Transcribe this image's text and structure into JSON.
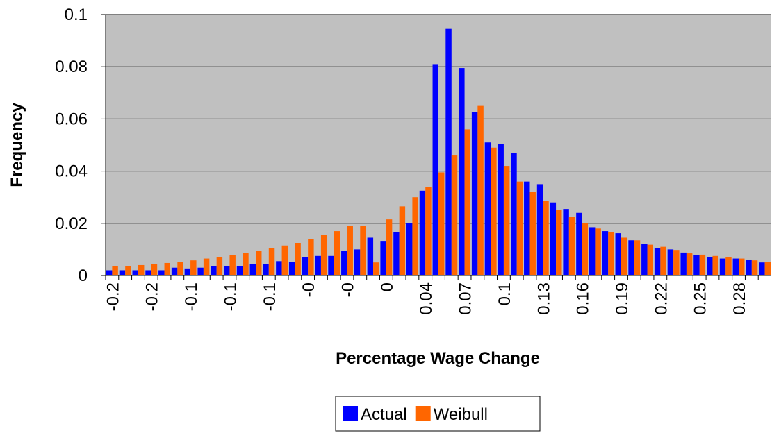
{
  "chart_data": {
    "type": "bar",
    "x_label": "Percentage Wage Change",
    "y_label": "Frequency",
    "categories": [
      "-0.2",
      null,
      null,
      "-0.2",
      null,
      null,
      "-0.1",
      null,
      null,
      "-0.1",
      null,
      null,
      "-0.1",
      null,
      null,
      "-0",
      null,
      null,
      "-0",
      null,
      null,
      "0",
      null,
      null,
      "0.04",
      null,
      null,
      "0.07",
      null,
      null,
      "0.1",
      null,
      null,
      "0.13",
      null,
      null,
      "0.16",
      null,
      null,
      "0.19",
      null,
      null,
      "0.22",
      null,
      null,
      "0.25",
      null,
      null,
      "0.28",
      null,
      null
    ],
    "series": [
      {
        "name": "Actual",
        "color": "#0000ff",
        "values": [
          0.002,
          0.002,
          0.002,
          0.002,
          0.002,
          0.003,
          0.0027,
          0.003,
          0.0035,
          0.0037,
          0.0037,
          0.0043,
          0.0045,
          0.0055,
          0.0053,
          0.007,
          0.0075,
          0.0075,
          0.0095,
          0.01,
          0.0145,
          0.013,
          0.0165,
          0.02,
          0.0325,
          0.081,
          0.0945,
          0.0795,
          0.0625,
          0.051,
          0.0505,
          0.047,
          0.036,
          0.035,
          0.028,
          0.0255,
          0.024,
          0.0185,
          0.017,
          0.0162,
          0.0135,
          0.0122,
          0.0105,
          0.01,
          0.0088,
          0.0078,
          0.007,
          0.0065,
          0.0065,
          0.006,
          0.005
        ]
      },
      {
        "name": "Weibull",
        "color": "#ff6600",
        "values": [
          0.0035,
          0.0035,
          0.004,
          0.0045,
          0.0048,
          0.0053,
          0.0058,
          0.0065,
          0.007,
          0.0078,
          0.0087,
          0.0095,
          0.0105,
          0.0115,
          0.0125,
          0.014,
          0.0155,
          0.017,
          0.019,
          0.019,
          0.005,
          0.0215,
          0.0265,
          0.03,
          0.034,
          0.0395,
          0.046,
          0.056,
          0.065,
          0.049,
          0.042,
          0.036,
          0.032,
          0.0285,
          0.025,
          0.0225,
          0.02,
          0.018,
          0.0165,
          0.0145,
          0.0135,
          0.0118,
          0.011,
          0.0098,
          0.0085,
          0.008,
          0.0075,
          0.007,
          0.0065,
          0.0058,
          0.0052
        ]
      }
    ],
    "ylim": [
      0,
      0.1
    ],
    "yticks": [
      0,
      0.02,
      0.04,
      0.06,
      0.08,
      0.1
    ],
    "grid": true,
    "background": "#c0c0c0",
    "legend": "bottom"
  }
}
